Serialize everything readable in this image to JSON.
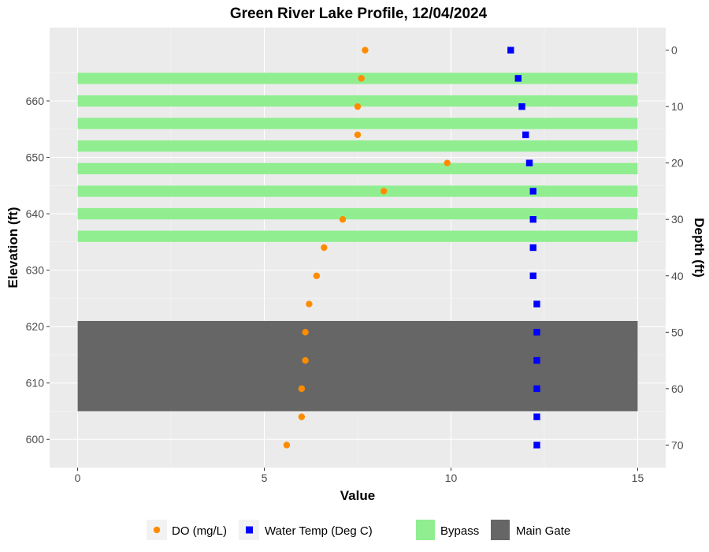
{
  "chart_data": {
    "type": "scatter",
    "title": "Green River Lake Profile,  12/04/2024",
    "xlabel": "Value",
    "ylabel": "Elevation (ft)",
    "y2label": "Depth (ft)",
    "xlim": [
      -0.75,
      15.75
    ],
    "ylim": [
      595,
      673
    ],
    "x_ticks": [
      0,
      5,
      10,
      15
    ],
    "y_ticks": [
      600,
      610,
      620,
      630,
      640,
      650,
      660
    ],
    "y2_ticks": [
      0,
      10,
      20,
      30,
      40,
      50,
      60,
      70
    ],
    "surface_elevation": 669,
    "grid": true,
    "background": "#ebebeb",
    "legend_position": "bottom",
    "series": [
      {
        "name": "DO (mg/L)",
        "marker": "circle",
        "color": "#ff8c00",
        "points": [
          {
            "x": 7.7,
            "y": 669.0
          },
          {
            "x": 7.6,
            "y": 664.0
          },
          {
            "x": 7.5,
            "y": 659.0
          },
          {
            "x": 7.5,
            "y": 654.0
          },
          {
            "x": 9.9,
            "y": 649.0
          },
          {
            "x": 8.2,
            "y": 644.0
          },
          {
            "x": 7.1,
            "y": 639.0
          },
          {
            "x": 6.6,
            "y": 634.0
          },
          {
            "x": 6.4,
            "y": 629.0
          },
          {
            "x": 6.2,
            "y": 624.0
          },
          {
            "x": 6.1,
            "y": 619.0
          },
          {
            "x": 6.1,
            "y": 614.0
          },
          {
            "x": 6.0,
            "y": 609.0
          },
          {
            "x": 6.0,
            "y": 604.0
          },
          {
            "x": 5.6,
            "y": 599.0
          }
        ]
      },
      {
        "name": "Water Temp (Deg C)",
        "marker": "square",
        "color": "#0000ff",
        "points": [
          {
            "x": 11.6,
            "y": 669.0
          },
          {
            "x": 11.8,
            "y": 664.0
          },
          {
            "x": 11.9,
            "y": 659.0
          },
          {
            "x": 12.0,
            "y": 654.0
          },
          {
            "x": 12.1,
            "y": 649.0
          },
          {
            "x": 12.2,
            "y": 644.0
          },
          {
            "x": 12.2,
            "y": 639.0
          },
          {
            "x": 12.2,
            "y": 634.0
          },
          {
            "x": 12.2,
            "y": 629.0
          },
          {
            "x": 12.3,
            "y": 624.0
          },
          {
            "x": 12.3,
            "y": 619.0
          },
          {
            "x": 12.3,
            "y": 614.0
          },
          {
            "x": 12.3,
            "y": 609.0
          },
          {
            "x": 12.3,
            "y": 604.0
          },
          {
            "x": 12.3,
            "y": 599.0
          }
        ]
      }
    ],
    "bands": [
      {
        "name": "Bypass",
        "color": "#90ee90",
        "ranges": [
          [
            663,
            665
          ],
          [
            659,
            661
          ],
          [
            655,
            657
          ],
          [
            651,
            653
          ],
          [
            647,
            649
          ],
          [
            643,
            645
          ],
          [
            639,
            641
          ],
          [
            635,
            637
          ]
        ]
      },
      {
        "name": "Main Gate",
        "color": "#666666",
        "ranges": [
          [
            605,
            621
          ]
        ]
      }
    ],
    "band_x_range": [
      0,
      15
    ]
  },
  "legend": {
    "items": [
      {
        "label": "DO (mg/L)",
        "marker": "circle",
        "color": "#ff8c00"
      },
      {
        "label": "Water Temp (Deg C)",
        "marker": "square",
        "color": "#0000ff"
      },
      {
        "label": "Bypass",
        "marker": "fill",
        "color": "#90ee90"
      },
      {
        "label": "Main Gate",
        "marker": "fill",
        "color": "#666666"
      }
    ]
  }
}
